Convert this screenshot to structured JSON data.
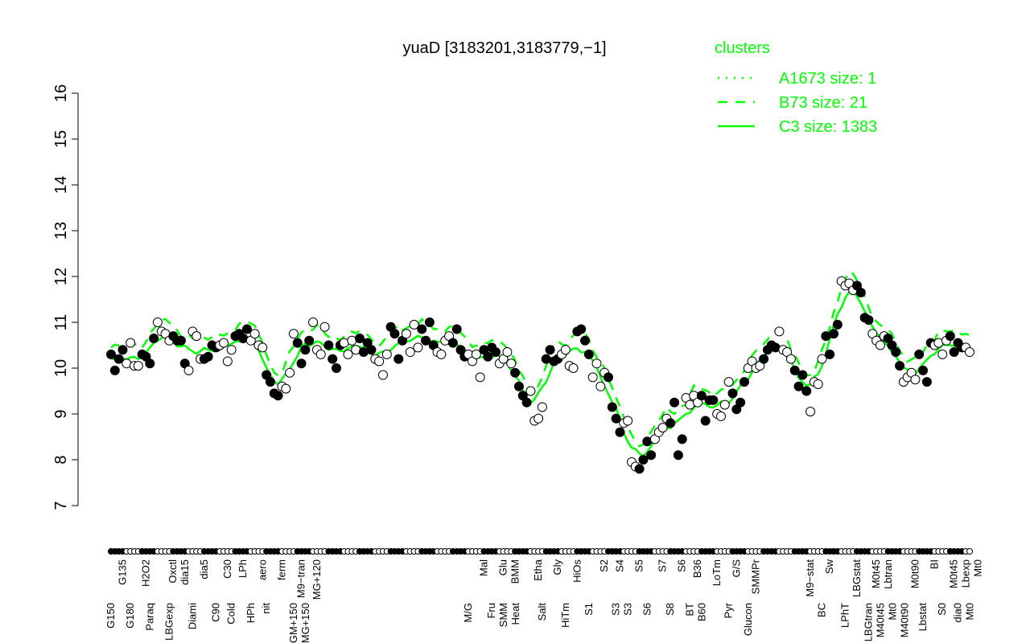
{
  "chart_data": {
    "type": "scatter",
    "title": "yuaD [3183201,3183779,−1]",
    "xlabel": "",
    "ylabel": "",
    "ylim": [
      7,
      16
    ],
    "yticks": [
      7,
      8,
      9,
      10,
      11,
      12,
      13,
      14,
      15,
      16
    ],
    "grid": false,
    "legend_placement": "top-right",
    "legend": {
      "title": "clusters",
      "entries": [
        {
          "label": "A1673 size: 1",
          "style": "dotted"
        },
        {
          "label": "B73 size: 21",
          "style": "dashed"
        },
        {
          "label": "C3 size: 1383",
          "style": "solid"
        }
      ]
    },
    "colors": {
      "series": "#00ff00",
      "points": "#000000",
      "text": "#000000"
    },
    "values": [
      10.3,
      9.95,
      10.2,
      10.4,
      10.1,
      10.55,
      10.05,
      10.05,
      10.3,
      10.25,
      10.1,
      10.65,
      11.0,
      10.8,
      10.75,
      10.6,
      10.7,
      10.6,
      10.6,
      10.1,
      9.95,
      10.8,
      10.7,
      10.2,
      10.2,
      10.25,
      10.5,
      10.45,
      10.5,
      10.55,
      10.15,
      10.4,
      10.7,
      10.75,
      10.65,
      10.85,
      10.6,
      10.75,
      10.5,
      10.45,
      9.85,
      9.7,
      9.45,
      9.4,
      9.6,
      9.55,
      9.9,
      10.75,
      10.55,
      10.1,
      10.4,
      10.6,
      11.0,
      10.4,
      10.3,
      10.9,
      10.5,
      10.2,
      10.0,
      10.5,
      10.55,
      10.3,
      10.6,
      10.4,
      10.65,
      10.35,
      10.55,
      10.4,
      10.2,
      10.15,
      9.85,
      10.3,
      10.9,
      10.75,
      10.2,
      10.6,
      10.75,
      10.35,
      10.95,
      10.45,
      10.85,
      10.6,
      11.0,
      10.5,
      10.35,
      10.3,
      10.6,
      10.7,
      10.55,
      10.85,
      10.4,
      10.25,
      10.3,
      10.15,
      10.3,
      9.8,
      10.4,
      10.25,
      10.45,
      10.35,
      10.1,
      10.2,
      10.35,
      10.1,
      9.9,
      9.6,
      9.4,
      9.25,
      9.5,
      8.85,
      8.9,
      9.15,
      10.2,
      10.4,
      10.15,
      10.2,
      10.3,
      10.4,
      10.05,
      10.0,
      10.8,
      10.85,
      10.6,
      10.3,
      9.8,
      10.1,
      9.6,
      9.9,
      9.8,
      9.15,
      8.9,
      8.6,
      8.8,
      8.85,
      7.95,
      7.85,
      7.8,
      8.0,
      8.4,
      8.1,
      8.45,
      8.6,
      8.7,
      8.9,
      8.8,
      9.25,
      8.1,
      8.45,
      9.35,
      9.2,
      9.4,
      9.25,
      9.4,
      8.85,
      9.3,
      9.3,
      9.0,
      8.95,
      9.2,
      9.7,
      9.45,
      9.1,
      9.25,
      9.7,
      10.0,
      10.15,
      10.0,
      10.05,
      10.2,
      10.4,
      10.5,
      10.45,
      10.8,
      10.4,
      10.35,
      10.2,
      9.95,
      9.6,
      9.85,
      9.5,
      9.05,
      9.7,
      9.65,
      10.2,
      10.7,
      10.3,
      10.75,
      10.95,
      11.9,
      11.8,
      11.85,
      11.7,
      11.8,
      11.65,
      11.1,
      11.05,
      10.75,
      10.6,
      10.5,
      10.7,
      10.65,
      10.5,
      10.35,
      10.05,
      9.7,
      9.8,
      9.9,
      9.75,
      10.3,
      9.95,
      9.7,
      10.55,
      10.5,
      10.55,
      10.3,
      10.6,
      10.7,
      10.35,
      10.55,
      10.45,
      10.45,
      10.35
    ],
    "x_labels_lower": [
      {
        "at": 0,
        "text": "G150"
      },
      {
        "at": 5,
        "text": "G180"
      },
      {
        "at": 10,
        "text": "Paraq"
      },
      {
        "at": 15,
        "text": "LBGexp"
      },
      {
        "at": 21,
        "text": "Diami"
      },
      {
        "at": 27,
        "text": "C90"
      },
      {
        "at": 31,
        "text": "Cold"
      },
      {
        "at": 36,
        "text": "HPh"
      },
      {
        "at": 40,
        "text": "nit"
      },
      {
        "at": 47,
        "text": "GM+150"
      },
      {
        "at": 50,
        "text": "MG+150"
      },
      {
        "at": 92,
        "text": "M/G"
      },
      {
        "at": 98,
        "text": "Fru"
      },
      {
        "at": 100,
        "text": "SMM"
      },
      {
        "at": 104,
        "text": "Heat"
      },
      {
        "at": 111,
        "text": "Salt"
      },
      {
        "at": 117,
        "text": "HiTm"
      },
      {
        "at": 123,
        "text": "S1"
      },
      {
        "at": 130,
        "text": "S3"
      },
      {
        "at": 133,
        "text": "S3"
      },
      {
        "at": 138,
        "text": "S6"
      },
      {
        "at": 144,
        "text": "S8"
      },
      {
        "at": 149,
        "text": "BT"
      },
      {
        "at": 152,
        "text": "B60"
      },
      {
        "at": 159,
        "text": "Pyr"
      },
      {
        "at": 164,
        "text": "Glucon"
      },
      {
        "at": 183,
        "text": "BC"
      },
      {
        "at": 189,
        "text": "LPhT"
      },
      {
        "at": 195,
        "text": "LBGtran"
      },
      {
        "at": 197,
        "text": "M40t45"
      },
      {
        "at": 200,
        "text": "Mt0"
      },
      {
        "at": 201,
        "text": "M40t90"
      },
      {
        "at": 209,
        "text": "Lbstat"
      },
      {
        "at": 214,
        "text": "S0"
      },
      {
        "at": 218,
        "text": "dia0"
      },
      {
        "at": 221,
        "text": "Mt0"
      }
    ],
    "x_labels_upper": [
      {
        "at": 3,
        "text": "G135"
      },
      {
        "at": 9,
        "text": "H2O2"
      },
      {
        "at": 16,
        "text": "Oxctl"
      },
      {
        "at": 19,
        "text": "dia15"
      },
      {
        "at": 24,
        "text": "dia5"
      },
      {
        "at": 30,
        "text": "C30"
      },
      {
        "at": 34,
        "text": "LPh"
      },
      {
        "at": 39,
        "text": "aero"
      },
      {
        "at": 44,
        "text": "ferm"
      },
      {
        "at": 49,
        "text": "M9−tran"
      },
      {
        "at": 53,
        "text": "MG+120"
      },
      {
        "at": 96,
        "text": "Mal"
      },
      {
        "at": 101,
        "text": "Glu"
      },
      {
        "at": 104,
        "text": "BMM"
      },
      {
        "at": 110,
        "text": "Etha"
      },
      {
        "at": 115,
        "text": "Gly"
      },
      {
        "at": 120,
        "text": "HiOs"
      },
      {
        "at": 127,
        "text": "S2"
      },
      {
        "at": 131,
        "text": "S4"
      },
      {
        "at": 136,
        "text": "S5"
      },
      {
        "at": 142,
        "text": "S7"
      },
      {
        "at": 147,
        "text": "S6"
      },
      {
        "at": 151,
        "text": "B36"
      },
      {
        "at": 156,
        "text": "LoTm"
      },
      {
        "at": 161,
        "text": "G/S"
      },
      {
        "at": 166,
        "text": "SMMPr"
      },
      {
        "at": 180,
        "text": "M9−stat"
      },
      {
        "at": 185,
        "text": "Sw"
      },
      {
        "at": 192,
        "text": "LBGstat"
      },
      {
        "at": 197,
        "text": "M0t45"
      },
      {
        "at": 200,
        "text": "Lbtran"
      },
      {
        "at": 207,
        "text": "M0t90"
      },
      {
        "at": 212,
        "text": "BI"
      },
      {
        "at": 217,
        "text": "M0t45"
      },
      {
        "at": 220,
        "text": "Lbexp"
      },
      {
        "at": 221,
        "text": "Mt0"
      }
    ]
  }
}
